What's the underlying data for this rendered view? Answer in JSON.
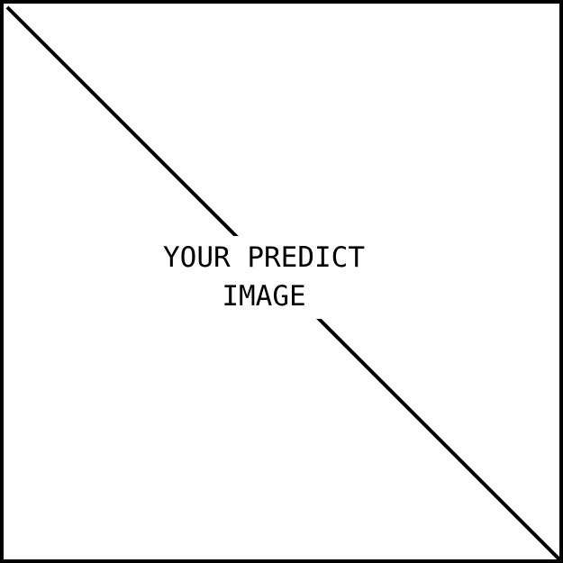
{
  "placeholder": {
    "line1": "YOUR PREDICT",
    "line2": "IMAGE",
    "colors": {
      "border": "#000000",
      "background": "#ffffff",
      "text": "#000000"
    }
  }
}
